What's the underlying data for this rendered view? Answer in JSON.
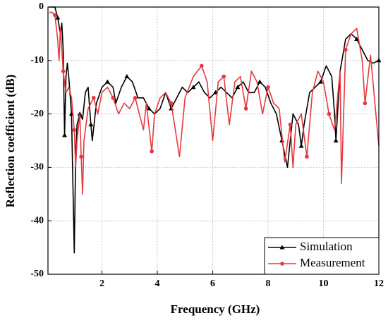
{
  "chart_data": {
    "type": "line",
    "xlabel": "Frequency (GHz)",
    "ylabel": "Reflection coefficient (dB)",
    "xlim": [
      0.05,
      12
    ],
    "xticks": [
      2,
      4,
      6,
      8,
      10,
      12
    ],
    "ylim": [
      -50,
      0
    ],
    "yticks": [
      -50,
      -40,
      -30,
      -20,
      -10,
      0
    ],
    "grid": true,
    "legend": "lower right",
    "series": [
      {
        "name": "Simulation",
        "color": "#000000",
        "x": [
          0.1,
          0.3,
          0.4,
          0.5,
          0.55,
          0.6,
          0.65,
          0.7,
          0.75,
          0.8,
          0.9,
          1.0,
          1.05,
          1.1,
          1.2,
          1.3,
          1.4,
          1.5,
          1.6,
          1.65,
          1.8,
          2.0,
          2.2,
          2.4,
          2.5,
          2.7,
          2.9,
          3.1,
          3.3,
          3.5,
          3.7,
          3.9,
          4.1,
          4.3,
          4.5,
          4.7,
          4.9,
          5.1,
          5.3,
          5.5,
          5.7,
          5.9,
          6.1,
          6.3,
          6.5,
          6.7,
          6.9,
          7.1,
          7.3,
          7.5,
          7.7,
          7.9,
          8.1,
          8.3,
          8.5,
          8.7,
          8.9,
          9.1,
          9.2,
          9.3,
          9.5,
          9.7,
          9.9,
          10.1,
          10.3,
          10.4,
          10.45,
          10.6,
          10.8,
          11.0,
          11.2,
          11.4,
          11.6,
          11.8,
          12.0
        ],
        "values": [
          0,
          0,
          -2,
          -5,
          -3,
          -8,
          -24,
          -13,
          -10.5,
          -13,
          -20,
          -46,
          -28,
          -22,
          -20,
          -21,
          -16,
          -15,
          -22,
          -25,
          -18,
          -15,
          -14,
          -15,
          -18,
          -15,
          -13,
          -14,
          -17,
          -17,
          -19,
          -20,
          -19,
          -16,
          -19,
          -17,
          -15,
          -16,
          -15,
          -14,
          -16,
          -17,
          -16,
          -15,
          -16,
          -17,
          -15,
          -14,
          -16,
          -16,
          -14,
          -15,
          -18,
          -20,
          -25,
          -30,
          -20,
          -22,
          -26,
          -22,
          -16,
          -15,
          -14,
          -11,
          -13,
          -20,
          -25,
          -12,
          -6,
          -5,
          -6,
          -8,
          -10,
          -10.5,
          -10
        ]
      },
      {
        "name": "Measurement",
        "color": "#e8383d",
        "x": [
          0.1,
          0.2,
          0.3,
          0.4,
          0.45,
          0.5,
          0.6,
          0.7,
          0.8,
          0.9,
          1.0,
          1.05,
          1.1,
          1.2,
          1.25,
          1.3,
          1.35,
          1.5,
          1.7,
          1.85,
          2.0,
          2.2,
          2.4,
          2.6,
          2.8,
          3.0,
          3.2,
          3.3,
          3.5,
          3.6,
          3.8,
          3.9,
          4.1,
          4.3,
          4.5,
          4.8,
          5.0,
          5.3,
          5.6,
          5.8,
          6.0,
          6.2,
          6.4,
          6.6,
          6.8,
          7.0,
          7.2,
          7.4,
          7.6,
          7.8,
          8.0,
          8.2,
          8.4,
          8.6,
          8.8,
          8.9,
          9.0,
          9.2,
          9.4,
          9.6,
          9.8,
          10.0,
          10.2,
          10.4,
          10.6,
          10.65,
          10.8,
          11.0,
          11.2,
          11.4,
          11.5,
          11.7,
          12.0
        ],
        "values": [
          -1,
          -1,
          -1.5,
          -6,
          -10,
          -4,
          -12,
          -16,
          -15,
          -17,
          -23,
          -30,
          -25,
          -20,
          -28,
          -35,
          -25,
          -19,
          -17,
          -20,
          -16,
          -15,
          -17,
          -20,
          -18,
          -19,
          -17,
          -19,
          -23,
          -18,
          -27,
          -20,
          -17,
          -16,
          -18,
          -28,
          -17,
          -13,
          -11,
          -14,
          -25,
          -14,
          -13,
          -22,
          -14,
          -13,
          -19,
          -12,
          -14,
          -20,
          -15,
          -18,
          -19,
          -29,
          -22,
          -30,
          -22,
          -20,
          -28,
          -16,
          -12,
          -14,
          -20,
          -23,
          -12,
          -33,
          -8,
          -5,
          -4,
          -10,
          -18,
          -9,
          -26
        ]
      }
    ]
  }
}
